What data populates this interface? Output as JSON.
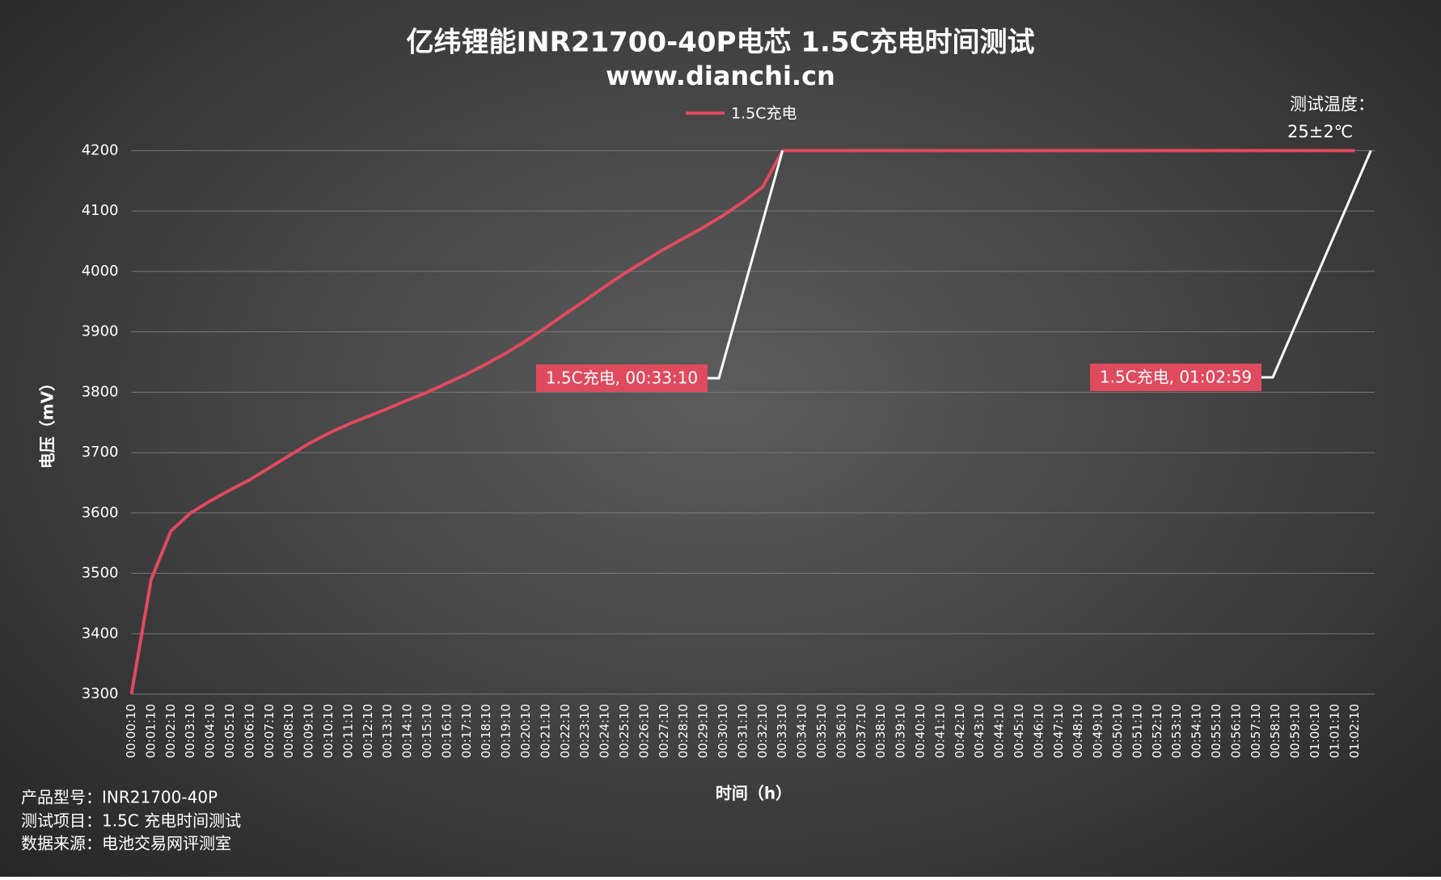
{
  "chart_data": {
    "type": "line",
    "title": "亿纬锂能INR21700-40P电芯 1.5C充电时间测试",
    "subtitle": "www.dianchi.cn",
    "x_label": "时间（h）",
    "y_label": "电压（mV）",
    "categories": [
      "00:00:10",
      "00:01:10",
      "00:02:10",
      "00:03:10",
      "00:04:10",
      "00:05:10",
      "00:06:10",
      "00:07:10",
      "00:08:10",
      "00:09:10",
      "00:10:10",
      "00:11:10",
      "00:12:10",
      "00:13:10",
      "00:14:10",
      "00:15:10",
      "00:16:10",
      "00:17:10",
      "00:18:10",
      "00:19:10",
      "00:20:10",
      "00:21:10",
      "00:22:10",
      "00:23:10",
      "00:24:10",
      "00:25:10",
      "00:26:10",
      "00:27:10",
      "00:28:10",
      "00:29:10",
      "00:30:10",
      "00:31:10",
      "00:32:10",
      "00:33:10",
      "00:34:10",
      "00:35:10",
      "00:36:10",
      "00:37:10",
      "00:38:10",
      "00:39:10",
      "00:40:10",
      "00:41:10",
      "00:42:10",
      "00:43:10",
      "00:44:10",
      "00:45:10",
      "00:46:10",
      "00:47:10",
      "00:48:10",
      "00:49:10",
      "00:50:10",
      "00:51:10",
      "00:52:10",
      "00:53:10",
      "00:54:10",
      "00:55:10",
      "00:56:10",
      "00:57:10",
      "00:58:10",
      "00:59:10",
      "01:00:10",
      "01:01:10",
      "01:02:10"
    ],
    "series": [
      {
        "name": "1.5C充电",
        "color": "#e04a5e",
        "values": [
          3300,
          3490,
          3570,
          3600,
          3620,
          3638,
          3655,
          3675,
          3695,
          3715,
          3732,
          3747,
          3760,
          3773,
          3787,
          3800,
          3815,
          3830,
          3847,
          3865,
          3885,
          3907,
          3930,
          3952,
          3975,
          3997,
          4017,
          4037,
          4055,
          4073,
          4093,
          4115,
          4140,
          4200,
          4200,
          4200,
          4200,
          4200,
          4200,
          4200,
          4200,
          4200,
          4200,
          4200,
          4200,
          4200,
          4200,
          4200,
          4200,
          4200,
          4200,
          4200,
          4200,
          4200,
          4200,
          4200,
          4200,
          4200,
          4200,
          4200,
          4200,
          4200,
          4200
        ]
      }
    ],
    "ylim": [
      3300,
      4200
    ],
    "yticks": [
      3300,
      3400,
      3500,
      3600,
      3700,
      3800,
      3900,
      4000,
      4100,
      4200
    ],
    "grid": true,
    "legend": "top",
    "annotations": [
      {
        "text": "1.5C充电, 00:33:10"
      },
      {
        "text": "1.5C充电, 01:02:59"
      }
    ],
    "note": [
      "测试温度：",
      "25±2℃"
    ],
    "footnotes": [
      "产品型号：INR21700-40P",
      "测试项目：1.5C 充电时间测试",
      "数据来源：电池交易网评测室"
    ]
  }
}
